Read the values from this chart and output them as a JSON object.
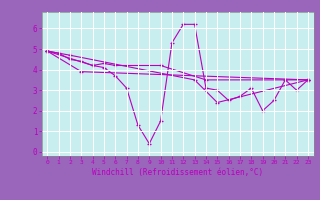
{
  "xlabel": "Windchill (Refroidissement éolien,°C)",
  "bg_color": "#c8eef0",
  "line_color": "#bb00bb",
  "grid_color": "#ffffff",
  "label_bg_color": "#9966bb",
  "tick_color": "#bb00bb",
  "xlim": [
    -0.5,
    23.5
  ],
  "ylim": [
    -0.2,
    6.8
  ],
  "xticks": [
    0,
    1,
    2,
    3,
    4,
    5,
    6,
    7,
    8,
    9,
    10,
    11,
    12,
    13,
    14,
    15,
    16,
    17,
    18,
    19,
    20,
    21,
    22,
    23
  ],
  "yticks": [
    0,
    1,
    2,
    3,
    4,
    5,
    6
  ],
  "series": [
    {
      "x": [
        0,
        1,
        2,
        3,
        4,
        5,
        6,
        7,
        8,
        9,
        10,
        11,
        12,
        13,
        14,
        15,
        16,
        17,
        18,
        19,
        20,
        21,
        22,
        23
      ],
      "y": [
        4.9,
        4.8,
        4.5,
        4.4,
        4.2,
        4.1,
        3.7,
        3.1,
        1.3,
        0.4,
        1.5,
        5.3,
        6.2,
        6.2,
        3.1,
        3.0,
        2.5,
        2.7,
        3.1,
        2.0,
        2.5,
        3.5,
        3.0,
        3.5
      ]
    },
    {
      "x": [
        0,
        2,
        13,
        15,
        23
      ],
      "y": [
        4.9,
        4.7,
        3.5,
        2.4,
        3.5
      ]
    },
    {
      "x": [
        0,
        3,
        23
      ],
      "y": [
        4.9,
        3.9,
        3.5
      ]
    },
    {
      "x": [
        0,
        4,
        5,
        6,
        10,
        14,
        23
      ],
      "y": [
        4.9,
        4.2,
        4.3,
        4.2,
        4.2,
        3.5,
        3.5
      ]
    }
  ]
}
